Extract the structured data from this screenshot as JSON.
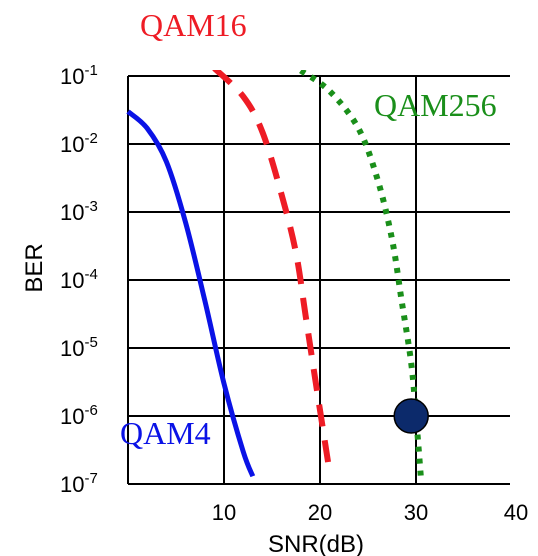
{
  "chart_data": {
    "type": "line",
    "xlabel": "SNR(dB)",
    "ylabel": "BER",
    "xlim": [
      0,
      40
    ],
    "ylim_log10": [
      -7,
      -1
    ],
    "y_scale": "log",
    "grid": true,
    "x_ticks": [
      "10",
      "20",
      "30",
      "40"
    ],
    "y_ticks": [
      {
        "base": "10",
        "exp": "-1"
      },
      {
        "base": "10",
        "exp": "-2"
      },
      {
        "base": "10",
        "exp": "-3"
      },
      {
        "base": "10",
        "exp": "-4"
      },
      {
        "base": "10",
        "exp": "-5"
      },
      {
        "base": "10",
        "exp": "-6"
      },
      {
        "base": "10",
        "exp": "-7"
      }
    ],
    "series": [
      {
        "name": "QAM4",
        "color": "#0a12e6",
        "style": "solid",
        "points": [
          [
            0,
            0.03
          ],
          [
            2,
            0.017
          ],
          [
            4,
            0.0055
          ],
          [
            6,
            0.0007
          ],
          [
            8,
            5e-05
          ],
          [
            10,
            3e-06
          ],
          [
            12,
            3e-07
          ],
          [
            13,
            1.3e-07
          ]
        ]
      },
      {
        "name": "QAM16",
        "color": "#ee1c25",
        "style": "dashed",
        "points": [
          [
            9,
            0.13
          ],
          [
            12,
            0.05
          ],
          [
            14,
            0.015
          ],
          [
            16,
            0.0018
          ],
          [
            17.5,
            0.00025
          ],
          [
            18.5,
            3e-05
          ],
          [
            19.5,
            3.5e-06
          ],
          [
            21,
            1.5e-07
          ]
        ]
      },
      {
        "name": "QAM256",
        "color": "#1a8f1a",
        "style": "dotted",
        "points": [
          [
            18,
            0.12
          ],
          [
            21,
            0.06
          ],
          [
            24,
            0.017
          ],
          [
            26,
            0.003
          ],
          [
            27.5,
            0.0004
          ],
          [
            28.5,
            5e-05
          ],
          [
            29.5,
            6e-06
          ],
          [
            30,
            1e-06
          ],
          [
            30.5,
            1.3e-07
          ]
        ]
      }
    ],
    "marker": {
      "x": 29.5,
      "y": 1e-06,
      "color": "#0c2a6b"
    },
    "labels": {
      "qam16": "QAM16",
      "qam256": "QAM256",
      "qam4": "QAM4"
    }
  }
}
